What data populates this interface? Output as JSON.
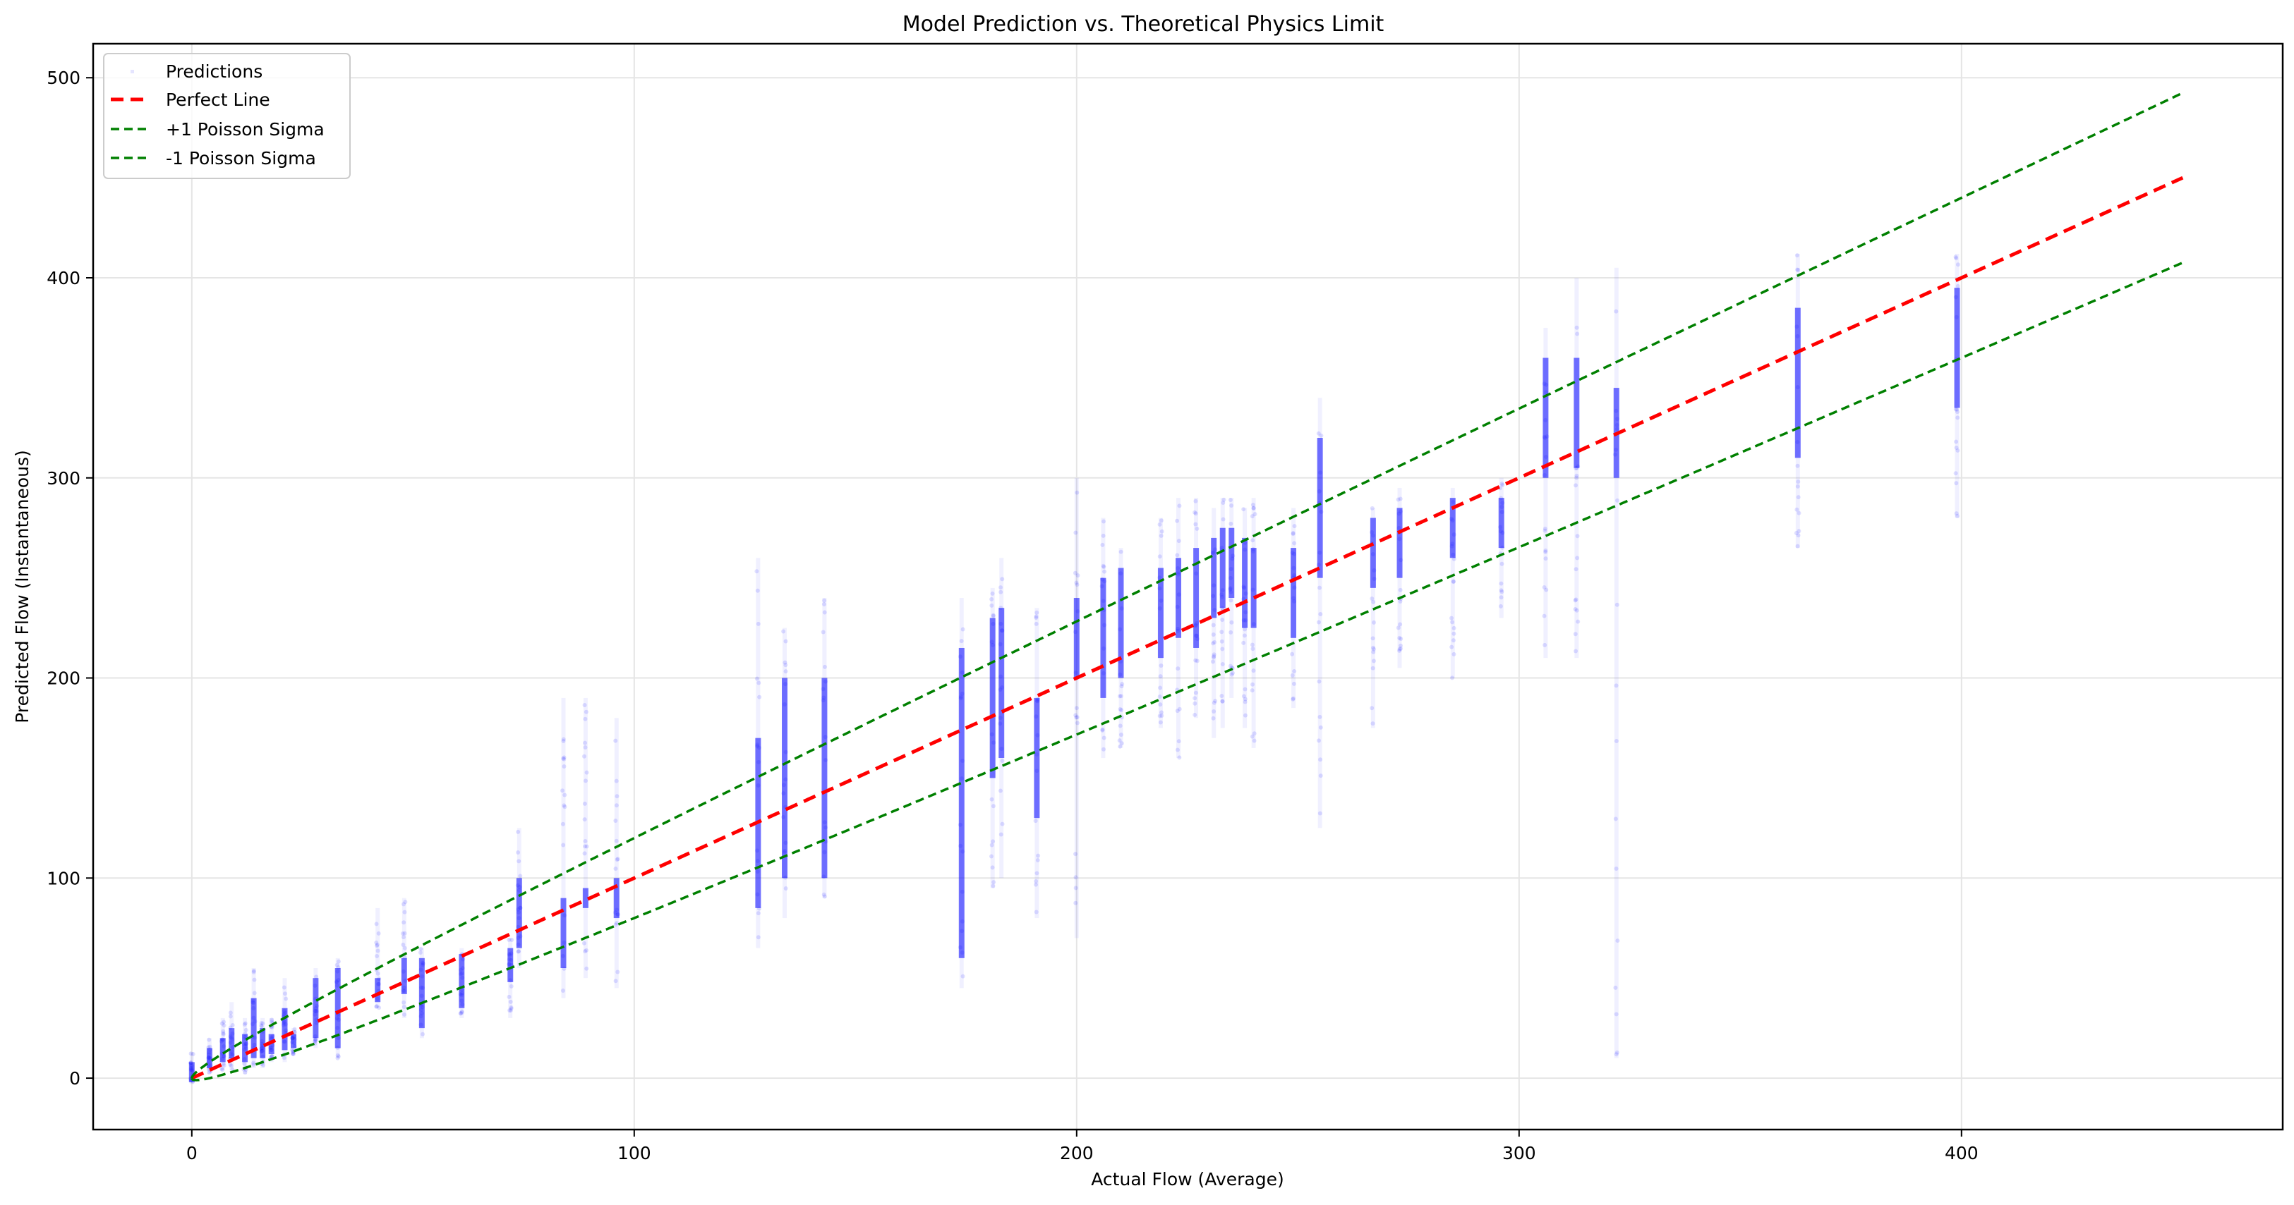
{
  "chart_data": {
    "type": "scatter",
    "title": "Model Prediction vs. Theoretical Physics Limit",
    "xlabel": "Actual Flow (Average)",
    "ylabel": "Predicted Flow (Instantaneous)",
    "xlim": [
      -22.3,
      472.6
    ],
    "ylim": [
      -25.7,
      517
    ],
    "xticks": [
      0,
      100,
      200,
      300,
      400
    ],
    "yticks": [
      0,
      100,
      200,
      300,
      400,
      500
    ],
    "grid": true,
    "legend_position": "upper left",
    "legend": [
      "Predictions",
      "Perfect Line",
      "+1 Poisson Sigma",
      "-1 Poisson Sigma"
    ],
    "series": [
      {
        "name": "Predictions",
        "kind": "scatter",
        "color": "#0000ff",
        "alpha": 0.05,
        "note": "vertical clusters of predictions at discrete actual-flow values; each entry = [actual_x, dense_low, dense_high, sparse_low, sparse_high]",
        "clusters": [
          [
            0,
            -2,
            8,
            -3,
            13
          ],
          [
            4,
            5,
            15,
            2,
            20
          ],
          [
            7,
            8,
            20,
            4,
            30
          ],
          [
            9,
            10,
            25,
            4,
            38
          ],
          [
            12,
            8,
            22,
            2,
            30
          ],
          [
            14,
            10,
            40,
            5,
            55
          ],
          [
            16,
            10,
            25,
            5,
            30
          ],
          [
            18,
            12,
            22,
            8,
            30
          ],
          [
            21,
            14,
            35,
            8,
            50
          ],
          [
            23,
            15,
            22,
            12,
            25
          ],
          [
            28,
            20,
            50,
            15,
            55
          ],
          [
            33,
            15,
            55,
            10,
            60
          ],
          [
            42,
            38,
            50,
            35,
            85
          ],
          [
            48,
            42,
            60,
            30,
            90
          ],
          [
            52,
            25,
            60,
            20,
            65
          ],
          [
            61,
            35,
            62,
            30,
            65
          ],
          [
            72,
            48,
            65,
            30,
            70
          ],
          [
            74,
            65,
            100,
            55,
            125
          ],
          [
            84,
            55,
            90,
            40,
            190
          ],
          [
            89,
            85,
            95,
            50,
            190
          ],
          [
            96,
            80,
            100,
            45,
            180
          ],
          [
            128,
            85,
            170,
            65,
            260
          ],
          [
            134,
            100,
            200,
            80,
            225
          ],
          [
            143,
            100,
            200,
            90,
            240
          ],
          [
            174,
            60,
            215,
            45,
            240
          ],
          [
            181,
            150,
            230,
            95,
            245
          ],
          [
            183,
            160,
            235,
            100,
            260
          ],
          [
            191,
            130,
            190,
            80,
            235
          ],
          [
            200,
            200,
            240,
            70,
            300
          ],
          [
            206,
            190,
            250,
            160,
            280
          ],
          [
            210,
            200,
            255,
            165,
            265
          ],
          [
            219,
            210,
            255,
            175,
            280
          ],
          [
            223,
            220,
            260,
            160,
            290
          ],
          [
            227,
            215,
            265,
            180,
            290
          ],
          [
            231,
            230,
            270,
            170,
            285
          ],
          [
            233,
            235,
            275,
            175,
            290
          ],
          [
            235,
            240,
            275,
            190,
            290
          ],
          [
            238,
            225,
            270,
            175,
            285
          ],
          [
            240,
            225,
            265,
            165,
            290
          ],
          [
            249,
            220,
            265,
            185,
            285
          ],
          [
            255,
            250,
            320,
            125,
            340
          ],
          [
            267,
            245,
            280,
            175,
            285
          ],
          [
            273,
            250,
            285,
            205,
            295
          ],
          [
            285,
            260,
            290,
            200,
            295
          ],
          [
            296,
            265,
            290,
            230,
            300
          ],
          [
            306,
            300,
            360,
            210,
            375
          ],
          [
            313,
            305,
            360,
            210,
            400
          ],
          [
            322,
            300,
            345,
            10,
            405
          ],
          [
            363,
            310,
            385,
            265,
            412
          ],
          [
            399,
            335,
            395,
            280,
            412
          ]
        ]
      },
      {
        "name": "Perfect Line",
        "kind": "line",
        "style": "dashed",
        "color": "#ff0000",
        "x": [
          0,
          450
        ],
        "y": [
          0,
          450
        ]
      },
      {
        "name": "+1 Poisson Sigma",
        "kind": "line",
        "style": "dashed",
        "color": "#008000",
        "formula": "y = x + 2*sqrt(x)",
        "x": [
          0,
          1,
          5,
          10,
          25,
          50,
          100,
          200,
          300,
          400,
          450
        ],
        "y": [
          0,
          3,
          9.5,
          16.3,
          35,
          64.1,
          120,
          228.3,
          334.6,
          440,
          492.4
        ]
      },
      {
        "name": "-1 Poisson Sigma",
        "kind": "line",
        "style": "dashed",
        "color": "#008000",
        "formula": "y = x - 2*sqrt(x)",
        "x": [
          0,
          1,
          5,
          10,
          25,
          50,
          100,
          200,
          300,
          400,
          450
        ],
        "y": [
          0,
          -1,
          0.5,
          3.7,
          15,
          35.9,
          80,
          171.7,
          265.4,
          360,
          407.6
        ]
      }
    ]
  },
  "colors": {
    "predictions": "#0000ff",
    "perfect_line": "#ff0000",
    "sigma_lines": "#008000",
    "grid": "#e5e5e5",
    "axes": "#000000"
  }
}
